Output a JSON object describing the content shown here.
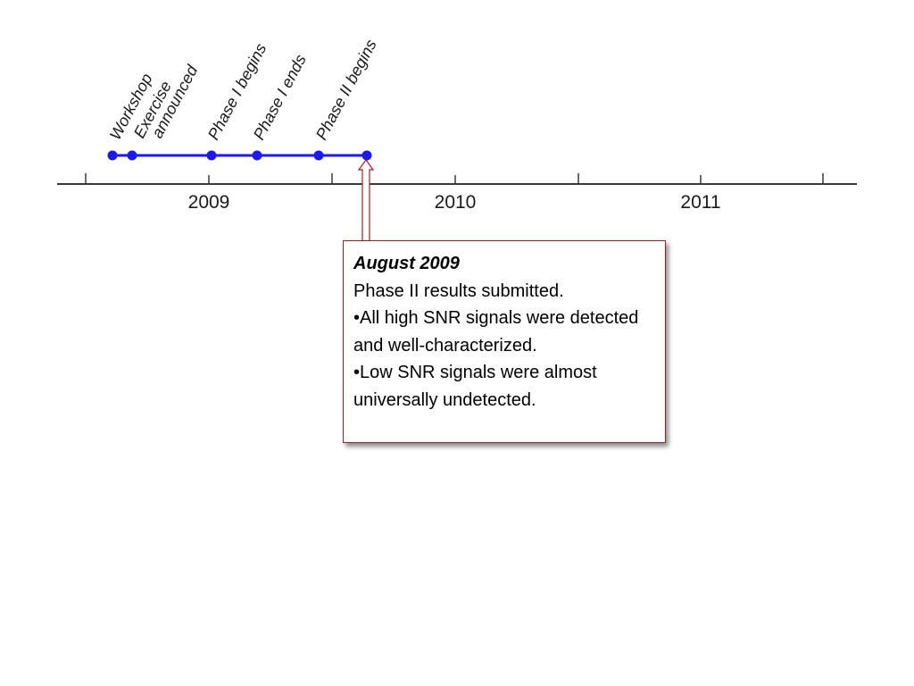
{
  "timeline": {
    "years": [
      "2009",
      "2010",
      "2011"
    ],
    "axis_color": "#3a3a3a",
    "range_color": "#1a1af0",
    "events": [
      {
        "lines": [
          "Workshop"
        ]
      },
      {
        "lines": [
          "Exercise",
          "announced"
        ]
      },
      {
        "lines": [
          "Phase I begins"
        ]
      },
      {
        "lines": [
          "Phase I ends"
        ]
      },
      {
        "lines": [
          "Phase II begins"
        ]
      },
      {
        "lines": []
      }
    ]
  },
  "callout": {
    "title": "August 2009",
    "lines": [
      "Phase II results submitted.",
      "•All high SNR signals were detected and well-characterized.",
      "•Low SNR signals were almost universally undetected."
    ],
    "border_color": "#b01c1c"
  }
}
